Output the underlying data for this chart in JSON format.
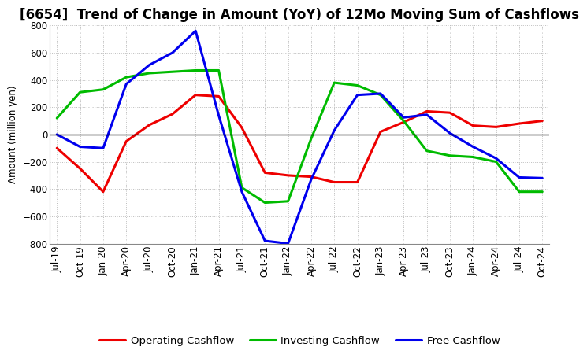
{
  "title": "[6654]  Trend of Change in Amount (YoY) of 12Mo Moving Sum of Cashflows",
  "ylabel": "Amount (million yen)",
  "xlabels": [
    "Jul-19",
    "Oct-19",
    "Jan-20",
    "Apr-20",
    "Jul-20",
    "Oct-20",
    "Jan-21",
    "Apr-21",
    "Jul-21",
    "Oct-21",
    "Jan-22",
    "Apr-22",
    "Jul-22",
    "Oct-22",
    "Jan-23",
    "Apr-23",
    "Jul-23",
    "Oct-23",
    "Jan-24",
    "Apr-24",
    "Jul-24",
    "Oct-24"
  ],
  "operating": [
    -100,
    -250,
    -420,
    -50,
    70,
    150,
    290,
    280,
    50,
    -280,
    -300,
    -310,
    -350,
    -350,
    20,
    90,
    170,
    160,
    65,
    55,
    80,
    100
  ],
  "investing": [
    120,
    310,
    330,
    420,
    450,
    460,
    470,
    470,
    -390,
    -500,
    -490,
    -30,
    380,
    360,
    290,
    100,
    -120,
    -155,
    -165,
    -200,
    -420,
    -420
  ],
  "free": [
    0,
    -90,
    -100,
    370,
    510,
    600,
    760,
    140,
    -420,
    -780,
    -800,
    -330,
    30,
    290,
    300,
    125,
    145,
    10,
    -90,
    -175,
    -315,
    -320
  ],
  "ylim": [
    -800,
    800
  ],
  "yticks": [
    -800,
    -600,
    -400,
    -200,
    0,
    200,
    400,
    600,
    800
  ],
  "operating_color": "#ee0000",
  "investing_color": "#00bb00",
  "free_color": "#0000ee",
  "bg_color": "#ffffff",
  "grid_color": "#bbbbbb",
  "title_fontsize": 12,
  "axis_fontsize": 8.5,
  "legend_fontsize": 9.5
}
